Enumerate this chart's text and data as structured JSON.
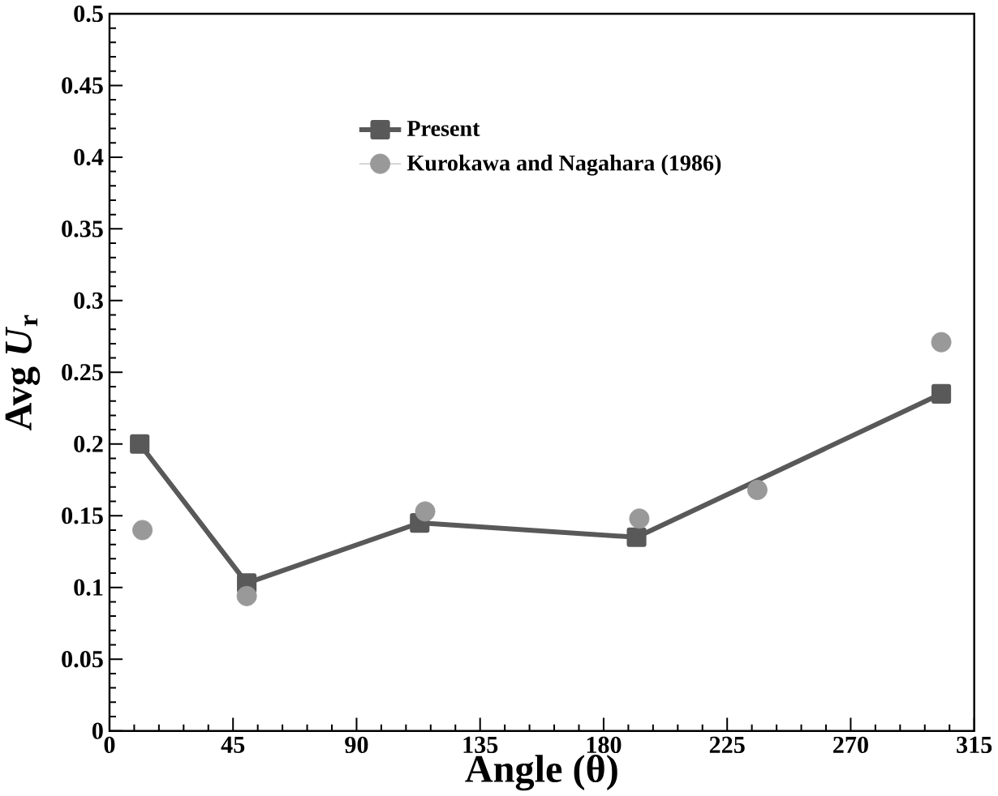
{
  "chart_data": {
    "type": "line",
    "xlabel": "Angle (θ)",
    "ylabel": "Avg *U*$_{r}$",
    "xlim": [
      0,
      315
    ],
    "xticks": [
      0,
      45,
      90,
      135,
      180,
      225,
      270,
      315
    ],
    "ylim": [
      0,
      0.5
    ],
    "yticks": [
      0,
      0.05,
      0.1,
      0.15,
      0.2,
      0.25,
      0.3,
      0.35,
      0.4,
      0.45,
      0.5
    ],
    "grid": false,
    "legend": "top",
    "series": [
      {
        "name": "Present",
        "color": "#595959",
        "marker": "square",
        "line_style": "solid",
        "x": [
          11,
          50,
          113,
          192,
          303
        ],
        "values": [
          0.2,
          0.103,
          0.145,
          0.135,
          0.235
        ]
      },
      {
        "name": "Kurokawa and Nagahara (1986)",
        "type": "scatter",
        "color": "#999999",
        "marker": "circle",
        "x": [
          12,
          50,
          115,
          193,
          236,
          303
        ],
        "values": [
          0.14,
          0.094,
          0.153,
          0.148,
          0.168,
          0.271
        ]
      }
    ]
  }
}
